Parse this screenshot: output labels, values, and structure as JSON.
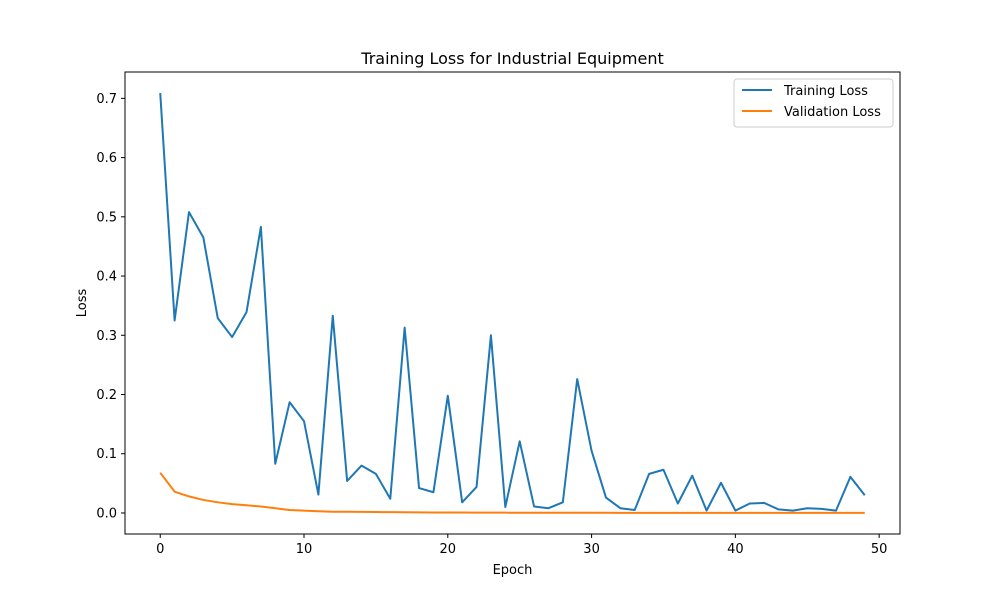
{
  "chart_data": {
    "type": "line",
    "title": "Training Loss for Industrial Equipment",
    "xlabel": "Epoch",
    "ylabel": "Loss",
    "xlim": [
      -2.45,
      51.45
    ],
    "ylim": [
      -0.0355,
      0.7445
    ],
    "xticks": [
      0,
      10,
      20,
      30,
      40,
      50
    ],
    "yticks": [
      0.0,
      0.1,
      0.2,
      0.3,
      0.4,
      0.5,
      0.6,
      0.7
    ],
    "ytick_labels": [
      "0.0",
      "0.1",
      "0.2",
      "0.3",
      "0.4",
      "0.5",
      "0.6",
      "0.7"
    ],
    "grid": false,
    "legend_position": "top-right",
    "x": [
      0,
      1,
      2,
      3,
      4,
      5,
      6,
      7,
      8,
      9,
      10,
      11,
      12,
      13,
      14,
      15,
      16,
      17,
      18,
      19,
      20,
      21,
      22,
      23,
      24,
      25,
      26,
      27,
      28,
      29,
      30,
      31,
      32,
      33,
      34,
      35,
      36,
      37,
      38,
      39,
      40,
      41,
      42,
      43,
      44,
      45,
      46,
      47,
      48,
      49
    ],
    "series": [
      {
        "name": "Training Loss",
        "color": "#1f77b4",
        "values": [
          0.709,
          0.325,
          0.508,
          0.465,
          0.329,
          0.297,
          0.339,
          0.483,
          0.083,
          0.187,
          0.155,
          0.031,
          0.333,
          0.054,
          0.08,
          0.066,
          0.024,
          0.313,
          0.042,
          0.035,
          0.198,
          0.018,
          0.044,
          0.3,
          0.01,
          0.121,
          0.011,
          0.008,
          0.018,
          0.226,
          0.105,
          0.026,
          0.008,
          0.005,
          0.066,
          0.073,
          0.016,
          0.063,
          0.004,
          0.051,
          0.004,
          0.016,
          0.017,
          0.006,
          0.004,
          0.008,
          0.007,
          0.004,
          0.061,
          0.03
        ]
      },
      {
        "name": "Validation Loss",
        "color": "#ff7f0e",
        "values": [
          0.068,
          0.036,
          0.028,
          0.022,
          0.018,
          0.015,
          0.013,
          0.011,
          0.008,
          0.005,
          0.004,
          0.003,
          0.002,
          0.002,
          0.0018,
          0.0016,
          0.0014,
          0.0012,
          0.001,
          0.0009,
          0.0008,
          0.0007,
          0.0006,
          0.0005,
          0.0005,
          0.0004,
          0.0004,
          0.0004,
          0.0003,
          0.0003,
          0.0003,
          0.0003,
          0.0002,
          0.0002,
          0.0002,
          0.0002,
          0.0002,
          0.0002,
          0.0001,
          0.0001,
          0.0001,
          0.0001,
          0.0001,
          0.0001,
          0.0001,
          0.0001,
          0.0001,
          0.0001,
          0.0001,
          0.0001
        ]
      }
    ]
  }
}
